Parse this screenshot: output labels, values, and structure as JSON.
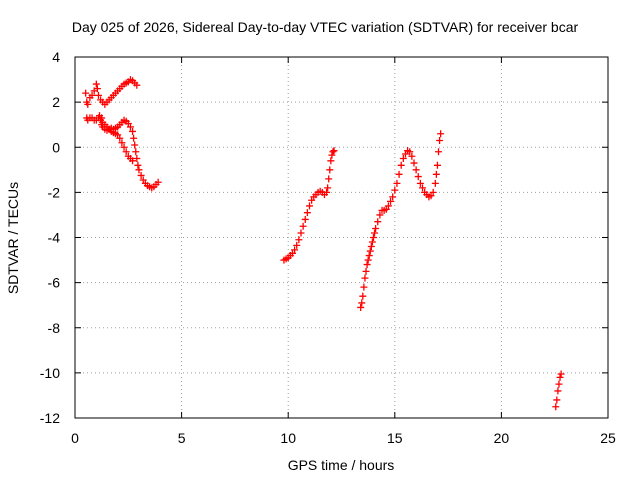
{
  "chart_data": {
    "type": "scatter",
    "title": "Day 025 of 2026, Sidereal Day-to-day VTEC variation (SDTVAR) for receiver bcar",
    "xlabel": "GPS time / hours",
    "ylabel": "SDTVAR / TECUs",
    "xlim": [
      0,
      25
    ],
    "ylim": [
      -12,
      4
    ],
    "xticks": [
      0,
      5,
      10,
      15,
      20,
      25
    ],
    "yticks": [
      4,
      2,
      0,
      -2,
      -4,
      -6,
      -8,
      -10,
      -12
    ],
    "grid": true,
    "marker": "plus",
    "color": "#ff0000",
    "series": [
      {
        "points": [
          [
            0.5,
            2.4
          ],
          [
            0.55,
            2.0
          ],
          [
            0.6,
            1.9
          ],
          [
            0.7,
            2.2
          ],
          [
            0.8,
            2.3
          ],
          [
            0.9,
            2.5
          ],
          [
            1.0,
            2.8
          ],
          [
            1.05,
            2.6
          ],
          [
            1.1,
            2.3
          ],
          [
            1.2,
            2.1
          ],
          [
            1.3,
            2.0
          ],
          [
            1.4,
            1.9
          ],
          [
            1.5,
            2.0
          ],
          [
            1.6,
            2.1
          ],
          [
            1.7,
            2.2
          ],
          [
            1.8,
            2.3
          ],
          [
            1.9,
            2.4
          ],
          [
            2.0,
            2.5
          ],
          [
            2.1,
            2.6
          ],
          [
            2.2,
            2.7
          ],
          [
            2.3,
            2.8
          ],
          [
            2.4,
            2.85
          ],
          [
            2.5,
            2.9
          ],
          [
            2.6,
            3.0
          ],
          [
            2.7,
            2.95
          ],
          [
            2.8,
            2.85
          ],
          [
            2.9,
            2.75
          ],
          [
            0.55,
            1.3
          ],
          [
            0.6,
            1.2
          ],
          [
            0.7,
            1.3
          ],
          [
            0.8,
            1.3
          ],
          [
            0.9,
            1.2
          ],
          [
            1.0,
            1.2
          ],
          [
            1.1,
            1.3
          ],
          [
            1.15,
            1.4
          ],
          [
            1.2,
            1.2
          ],
          [
            1.25,
            1.0
          ],
          [
            1.3,
            0.9
          ],
          [
            1.4,
            0.8
          ],
          [
            1.5,
            0.75
          ],
          [
            1.6,
            0.8
          ],
          [
            1.7,
            0.85
          ],
          [
            1.8,
            0.8
          ],
          [
            1.9,
            0.85
          ],
          [
            2.0,
            0.9
          ],
          [
            2.1,
            1.0
          ],
          [
            2.2,
            1.1
          ],
          [
            2.3,
            1.2
          ],
          [
            2.4,
            1.15
          ],
          [
            2.5,
            1.05
          ],
          [
            2.6,
            0.9
          ],
          [
            2.7,
            0.7
          ],
          [
            2.75,
            0.4
          ],
          [
            2.8,
            0.1
          ],
          [
            2.85,
            -0.2
          ],
          [
            2.9,
            -0.5
          ],
          [
            2.95,
            -0.8
          ],
          [
            3.0,
            -1.0
          ],
          [
            3.1,
            -1.25
          ],
          [
            3.2,
            -1.45
          ],
          [
            3.3,
            -1.6
          ],
          [
            3.4,
            -1.7
          ],
          [
            3.5,
            -1.75
          ],
          [
            3.6,
            -1.8
          ],
          [
            3.7,
            -1.75
          ],
          [
            3.8,
            -1.65
          ],
          [
            3.9,
            -1.55
          ],
          [
            1.25,
            1.3
          ],
          [
            1.3,
            1.1
          ],
          [
            1.4,
            1.0
          ],
          [
            1.5,
            0.9
          ],
          [
            1.6,
            0.8
          ],
          [
            1.7,
            0.7
          ],
          [
            1.8,
            0.65
          ],
          [
            1.9,
            0.6
          ],
          [
            2.0,
            0.55
          ],
          [
            2.1,
            0.4
          ],
          [
            2.2,
            0.2
          ],
          [
            2.3,
            0.0
          ],
          [
            2.4,
            -0.2
          ],
          [
            2.5,
            -0.4
          ],
          [
            2.6,
            -0.5
          ],
          [
            2.7,
            -0.6
          ]
        ]
      },
      {
        "points": [
          [
            9.8,
            -5.0
          ],
          [
            9.9,
            -4.95
          ],
          [
            10.0,
            -4.9
          ],
          [
            10.1,
            -4.8
          ],
          [
            10.2,
            -4.7
          ],
          [
            10.3,
            -4.55
          ],
          [
            10.4,
            -4.35
          ],
          [
            10.5,
            -4.1
          ],
          [
            10.6,
            -3.8
          ],
          [
            10.7,
            -3.5
          ],
          [
            10.8,
            -3.2
          ],
          [
            10.9,
            -2.9
          ],
          [
            11.0,
            -2.6
          ],
          [
            11.1,
            -2.35
          ],
          [
            11.2,
            -2.2
          ],
          [
            11.3,
            -2.1
          ],
          [
            11.4,
            -2.0
          ],
          [
            11.5,
            -1.95
          ],
          [
            11.6,
            -2.0
          ],
          [
            11.7,
            -2.1
          ],
          [
            11.8,
            -2.0
          ],
          [
            11.85,
            -1.8
          ],
          [
            11.9,
            -1.4
          ],
          [
            11.95,
            -1.0
          ],
          [
            12.0,
            -0.6
          ],
          [
            12.05,
            -0.35
          ],
          [
            12.1,
            -0.2
          ],
          [
            12.15,
            -0.15
          ]
        ]
      },
      {
        "points": [
          [
            13.4,
            -7.1
          ],
          [
            13.45,
            -6.9
          ],
          [
            13.5,
            -6.6
          ],
          [
            13.55,
            -6.2
          ],
          [
            13.6,
            -5.8
          ],
          [
            13.65,
            -5.5
          ],
          [
            13.7,
            -5.2
          ],
          [
            13.75,
            -5.0
          ],
          [
            13.8,
            -4.8
          ],
          [
            13.85,
            -4.6
          ],
          [
            13.9,
            -4.4
          ],
          [
            13.95,
            -4.2
          ],
          [
            14.0,
            -4.0
          ],
          [
            14.05,
            -3.8
          ],
          [
            14.1,
            -3.6
          ],
          [
            14.2,
            -3.3
          ],
          [
            14.3,
            -3.0
          ],
          [
            14.4,
            -2.8
          ],
          [
            14.5,
            -2.8
          ],
          [
            14.6,
            -2.75
          ],
          [
            14.7,
            -2.6
          ],
          [
            14.8,
            -2.4
          ],
          [
            14.9,
            -2.2
          ],
          [
            15.0,
            -1.9
          ],
          [
            15.1,
            -1.6
          ],
          [
            15.2,
            -1.2
          ],
          [
            15.3,
            -0.8
          ],
          [
            15.4,
            -0.5
          ],
          [
            15.5,
            -0.3
          ],
          [
            15.6,
            -0.15
          ],
          [
            15.7,
            -0.2
          ],
          [
            15.8,
            -0.4
          ],
          [
            15.9,
            -0.7
          ],
          [
            16.0,
            -1.0
          ],
          [
            16.1,
            -1.3
          ],
          [
            16.2,
            -1.6
          ],
          [
            16.3,
            -1.8
          ],
          [
            16.4,
            -2.0
          ],
          [
            16.5,
            -2.1
          ],
          [
            16.6,
            -2.2
          ],
          [
            16.7,
            -2.15
          ],
          [
            16.8,
            -2.0
          ],
          [
            16.9,
            -1.6
          ],
          [
            16.95,
            -1.2
          ],
          [
            17.0,
            -0.8
          ],
          [
            17.05,
            -0.2
          ],
          [
            17.1,
            0.3
          ],
          [
            17.15,
            0.6
          ]
        ]
      },
      {
        "points": [
          [
            22.55,
            -11.5
          ],
          [
            22.6,
            -11.2
          ],
          [
            22.65,
            -10.8
          ],
          [
            22.7,
            -10.5
          ],
          [
            22.75,
            -10.2
          ],
          [
            22.8,
            -10.05
          ]
        ]
      }
    ]
  }
}
